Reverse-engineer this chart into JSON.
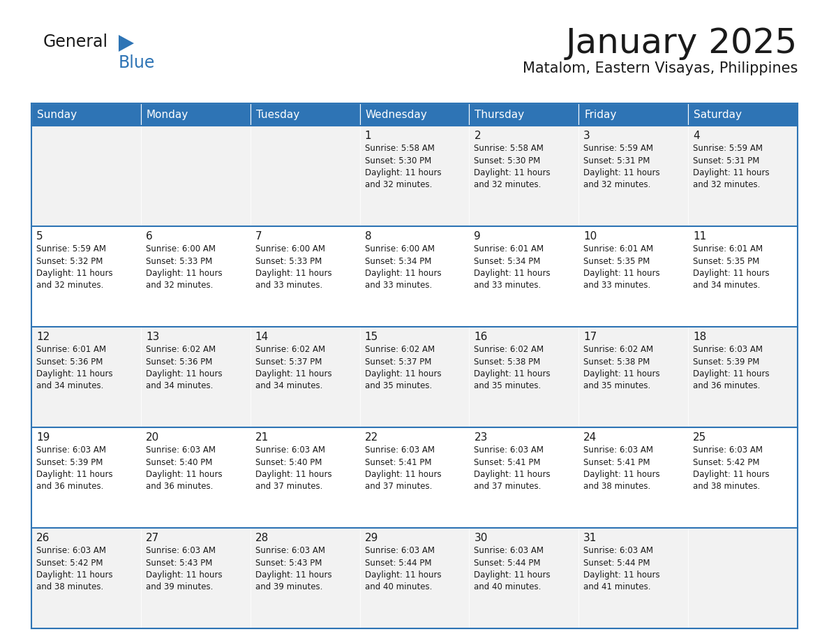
{
  "title": "January 2025",
  "subtitle": "Matalom, Eastern Visayas, Philippines",
  "header_bg": "#2e74b5",
  "header_text": "#ffffff",
  "row_bg_odd": "#f2f2f2",
  "row_bg_even": "#ffffff",
  "cell_border": "#2e74b5",
  "day_headers": [
    "Sunday",
    "Monday",
    "Tuesday",
    "Wednesday",
    "Thursday",
    "Friday",
    "Saturday"
  ],
  "calendar": [
    [
      {
        "day": "",
        "text": ""
      },
      {
        "day": "",
        "text": ""
      },
      {
        "day": "",
        "text": ""
      },
      {
        "day": "1",
        "text": "Sunrise: 5:58 AM\nSunset: 5:30 PM\nDaylight: 11 hours\nand 32 minutes."
      },
      {
        "day": "2",
        "text": "Sunrise: 5:58 AM\nSunset: 5:30 PM\nDaylight: 11 hours\nand 32 minutes."
      },
      {
        "day": "3",
        "text": "Sunrise: 5:59 AM\nSunset: 5:31 PM\nDaylight: 11 hours\nand 32 minutes."
      },
      {
        "day": "4",
        "text": "Sunrise: 5:59 AM\nSunset: 5:31 PM\nDaylight: 11 hours\nand 32 minutes."
      }
    ],
    [
      {
        "day": "5",
        "text": "Sunrise: 5:59 AM\nSunset: 5:32 PM\nDaylight: 11 hours\nand 32 minutes."
      },
      {
        "day": "6",
        "text": "Sunrise: 6:00 AM\nSunset: 5:33 PM\nDaylight: 11 hours\nand 32 minutes."
      },
      {
        "day": "7",
        "text": "Sunrise: 6:00 AM\nSunset: 5:33 PM\nDaylight: 11 hours\nand 33 minutes."
      },
      {
        "day": "8",
        "text": "Sunrise: 6:00 AM\nSunset: 5:34 PM\nDaylight: 11 hours\nand 33 minutes."
      },
      {
        "day": "9",
        "text": "Sunrise: 6:01 AM\nSunset: 5:34 PM\nDaylight: 11 hours\nand 33 minutes."
      },
      {
        "day": "10",
        "text": "Sunrise: 6:01 AM\nSunset: 5:35 PM\nDaylight: 11 hours\nand 33 minutes."
      },
      {
        "day": "11",
        "text": "Sunrise: 6:01 AM\nSunset: 5:35 PM\nDaylight: 11 hours\nand 34 minutes."
      }
    ],
    [
      {
        "day": "12",
        "text": "Sunrise: 6:01 AM\nSunset: 5:36 PM\nDaylight: 11 hours\nand 34 minutes."
      },
      {
        "day": "13",
        "text": "Sunrise: 6:02 AM\nSunset: 5:36 PM\nDaylight: 11 hours\nand 34 minutes."
      },
      {
        "day": "14",
        "text": "Sunrise: 6:02 AM\nSunset: 5:37 PM\nDaylight: 11 hours\nand 34 minutes."
      },
      {
        "day": "15",
        "text": "Sunrise: 6:02 AM\nSunset: 5:37 PM\nDaylight: 11 hours\nand 35 minutes."
      },
      {
        "day": "16",
        "text": "Sunrise: 6:02 AM\nSunset: 5:38 PM\nDaylight: 11 hours\nand 35 minutes."
      },
      {
        "day": "17",
        "text": "Sunrise: 6:02 AM\nSunset: 5:38 PM\nDaylight: 11 hours\nand 35 minutes."
      },
      {
        "day": "18",
        "text": "Sunrise: 6:03 AM\nSunset: 5:39 PM\nDaylight: 11 hours\nand 36 minutes."
      }
    ],
    [
      {
        "day": "19",
        "text": "Sunrise: 6:03 AM\nSunset: 5:39 PM\nDaylight: 11 hours\nand 36 minutes."
      },
      {
        "day": "20",
        "text": "Sunrise: 6:03 AM\nSunset: 5:40 PM\nDaylight: 11 hours\nand 36 minutes."
      },
      {
        "day": "21",
        "text": "Sunrise: 6:03 AM\nSunset: 5:40 PM\nDaylight: 11 hours\nand 37 minutes."
      },
      {
        "day": "22",
        "text": "Sunrise: 6:03 AM\nSunset: 5:41 PM\nDaylight: 11 hours\nand 37 minutes."
      },
      {
        "day": "23",
        "text": "Sunrise: 6:03 AM\nSunset: 5:41 PM\nDaylight: 11 hours\nand 37 minutes."
      },
      {
        "day": "24",
        "text": "Sunrise: 6:03 AM\nSunset: 5:41 PM\nDaylight: 11 hours\nand 38 minutes."
      },
      {
        "day": "25",
        "text": "Sunrise: 6:03 AM\nSunset: 5:42 PM\nDaylight: 11 hours\nand 38 minutes."
      }
    ],
    [
      {
        "day": "26",
        "text": "Sunrise: 6:03 AM\nSunset: 5:42 PM\nDaylight: 11 hours\nand 38 minutes."
      },
      {
        "day": "27",
        "text": "Sunrise: 6:03 AM\nSunset: 5:43 PM\nDaylight: 11 hours\nand 39 minutes."
      },
      {
        "day": "28",
        "text": "Sunrise: 6:03 AM\nSunset: 5:43 PM\nDaylight: 11 hours\nand 39 minutes."
      },
      {
        "day": "29",
        "text": "Sunrise: 6:03 AM\nSunset: 5:44 PM\nDaylight: 11 hours\nand 40 minutes."
      },
      {
        "day": "30",
        "text": "Sunrise: 6:03 AM\nSunset: 5:44 PM\nDaylight: 11 hours\nand 40 minutes."
      },
      {
        "day": "31",
        "text": "Sunrise: 6:03 AM\nSunset: 5:44 PM\nDaylight: 11 hours\nand 41 minutes."
      },
      {
        "day": "",
        "text": ""
      }
    ]
  ],
  "logo_general_color": "#1a1a1a",
  "logo_blue_color": "#2e74b5",
  "title_fontsize": 36,
  "subtitle_fontsize": 15,
  "header_fontsize": 11,
  "day_number_fontsize": 11,
  "cell_text_fontsize": 8.5
}
